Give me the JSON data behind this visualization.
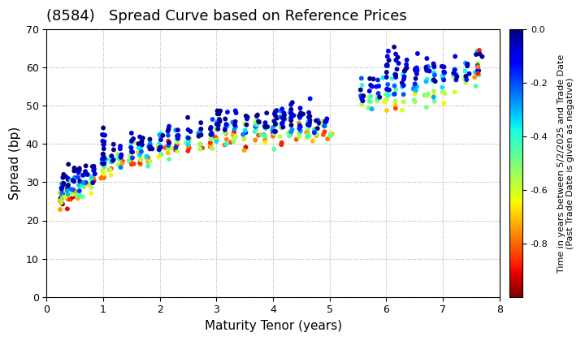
{
  "title": "(8584)   Spread Curve based on Reference Prices",
  "xlabel": "Maturity Tenor (years)",
  "ylabel": "Spread (bp)",
  "xlim": [
    0,
    8
  ],
  "ylim": [
    0,
    70
  ],
  "xticks": [
    0,
    1,
    2,
    3,
    4,
    5,
    6,
    7,
    8
  ],
  "yticks": [
    0,
    10,
    20,
    30,
    40,
    50,
    60,
    70
  ],
  "colorbar_label": "Time in years between 5/2/2025 and Trade Date\n(Past Trade Date is given as negative)",
  "colorbar_ticks": [
    0.0,
    -0.2,
    -0.4,
    -0.6,
    -0.8
  ],
  "colorbar_ticklabels": [
    "0.0",
    "-0.2",
    "-0.4",
    "-0.6",
    "-0.8"
  ],
  "cmap": "jet_r",
  "vmin": -1.0,
  "vmax": 0.0,
  "background_color": "#ffffff",
  "grid_color": "#aaaaaa",
  "title_fontsize": 13,
  "axis_label_fontsize": 11,
  "marker_size": 18,
  "seed": 42
}
